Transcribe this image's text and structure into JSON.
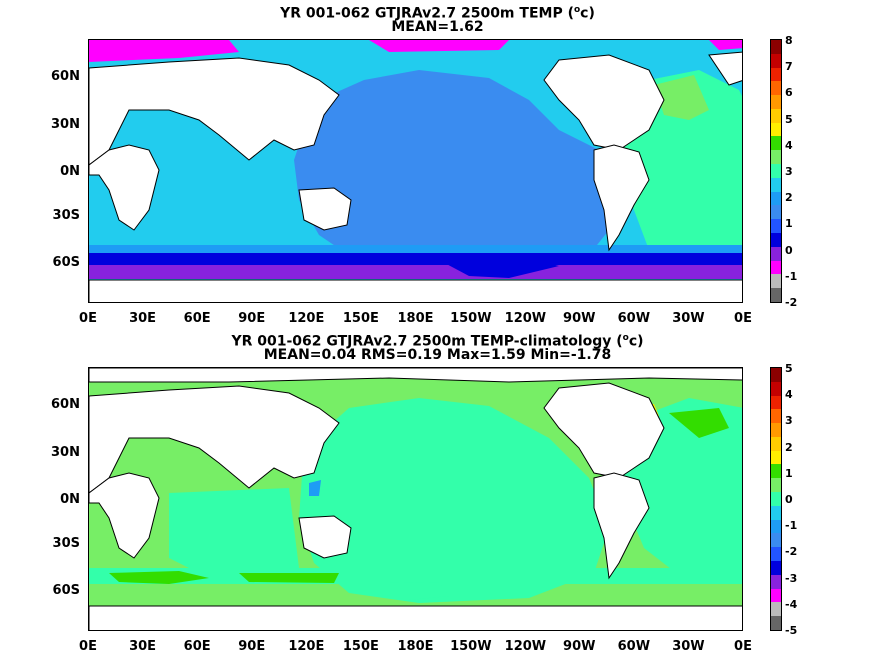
{
  "top": {
    "title": "YR 001-062 GTJRAv2.7 2500m TEMP (",
    "title_sup": "o",
    "title_end": "c)",
    "subtitle": "MEAN=1.62",
    "lat_labels": [
      "60N",
      "30N",
      "0N",
      "30S",
      "60S"
    ],
    "lon_labels": [
      "0E",
      "30E",
      "60E",
      "90E",
      "120E",
      "150E",
      "180E",
      "150W",
      "120W",
      "90W",
      "60W",
      "30W",
      "0E"
    ],
    "colorbar_ticks": [
      "8",
      "7",
      "6",
      "5",
      "4",
      "3",
      "2",
      "1",
      "0",
      "-1",
      "-2"
    ],
    "colorbar_colors": [
      "#8b0000",
      "#c40000",
      "#ee2200",
      "#ff6600",
      "#ff9900",
      "#ffcc00",
      "#ffee00",
      "#33dd00",
      "#77ee66",
      "#33ffaa",
      "#22ccee",
      "#1e9cf5",
      "#3a8cf0",
      "#2255ff",
      "#0000dd",
      "#8822dd",
      "#ff00ff",
      "#bbbbbb",
      "#666666"
    ]
  },
  "bottom": {
    "title": "YR 001-062 GTJRAv2.7 2500m TEMP-climatology (",
    "title_sup": "o",
    "title_end": "c)",
    "subtitle": "MEAN=0.04   RMS=0.19   Max=1.59   Min=-1.78",
    "lat_labels": [
      "60N",
      "30N",
      "0N",
      "30S",
      "60S"
    ],
    "lon_labels": [
      "0E",
      "30E",
      "60E",
      "90E",
      "120E",
      "150E",
      "180E",
      "150W",
      "120W",
      "90W",
      "60W",
      "30W",
      "0E"
    ],
    "colorbar_ticks": [
      "5",
      "4",
      "3",
      "2",
      "1",
      "0",
      "-1",
      "-2",
      "-3",
      "-4",
      "-5"
    ],
    "colorbar_colors": [
      "#8b0000",
      "#c40000",
      "#ee2200",
      "#ff6600",
      "#ff9900",
      "#ffcc00",
      "#ffee00",
      "#33dd00",
      "#77ee66",
      "#33ffaa",
      "#22ccee",
      "#1e9cf5",
      "#3a8cf0",
      "#2255ff",
      "#0000dd",
      "#8822dd",
      "#ff00ff",
      "#bbbbbb",
      "#666666"
    ]
  },
  "colors": {
    "land": "#ffffff",
    "deep_pacific": "#3a8cf0",
    "indian_atlantic_south": "#22ccee",
    "north_atlantic": "#33ffaa",
    "southern_band": "#1e9cf5",
    "circumpolar_low": "#0000dd",
    "antarctic_purple": "#8822dd",
    "arctic_magenta": "#ff00ff",
    "anomaly_main": "#33ffaa",
    "anomaly_light": "#77ee66",
    "anomaly_pos": "#33dd00"
  }
}
